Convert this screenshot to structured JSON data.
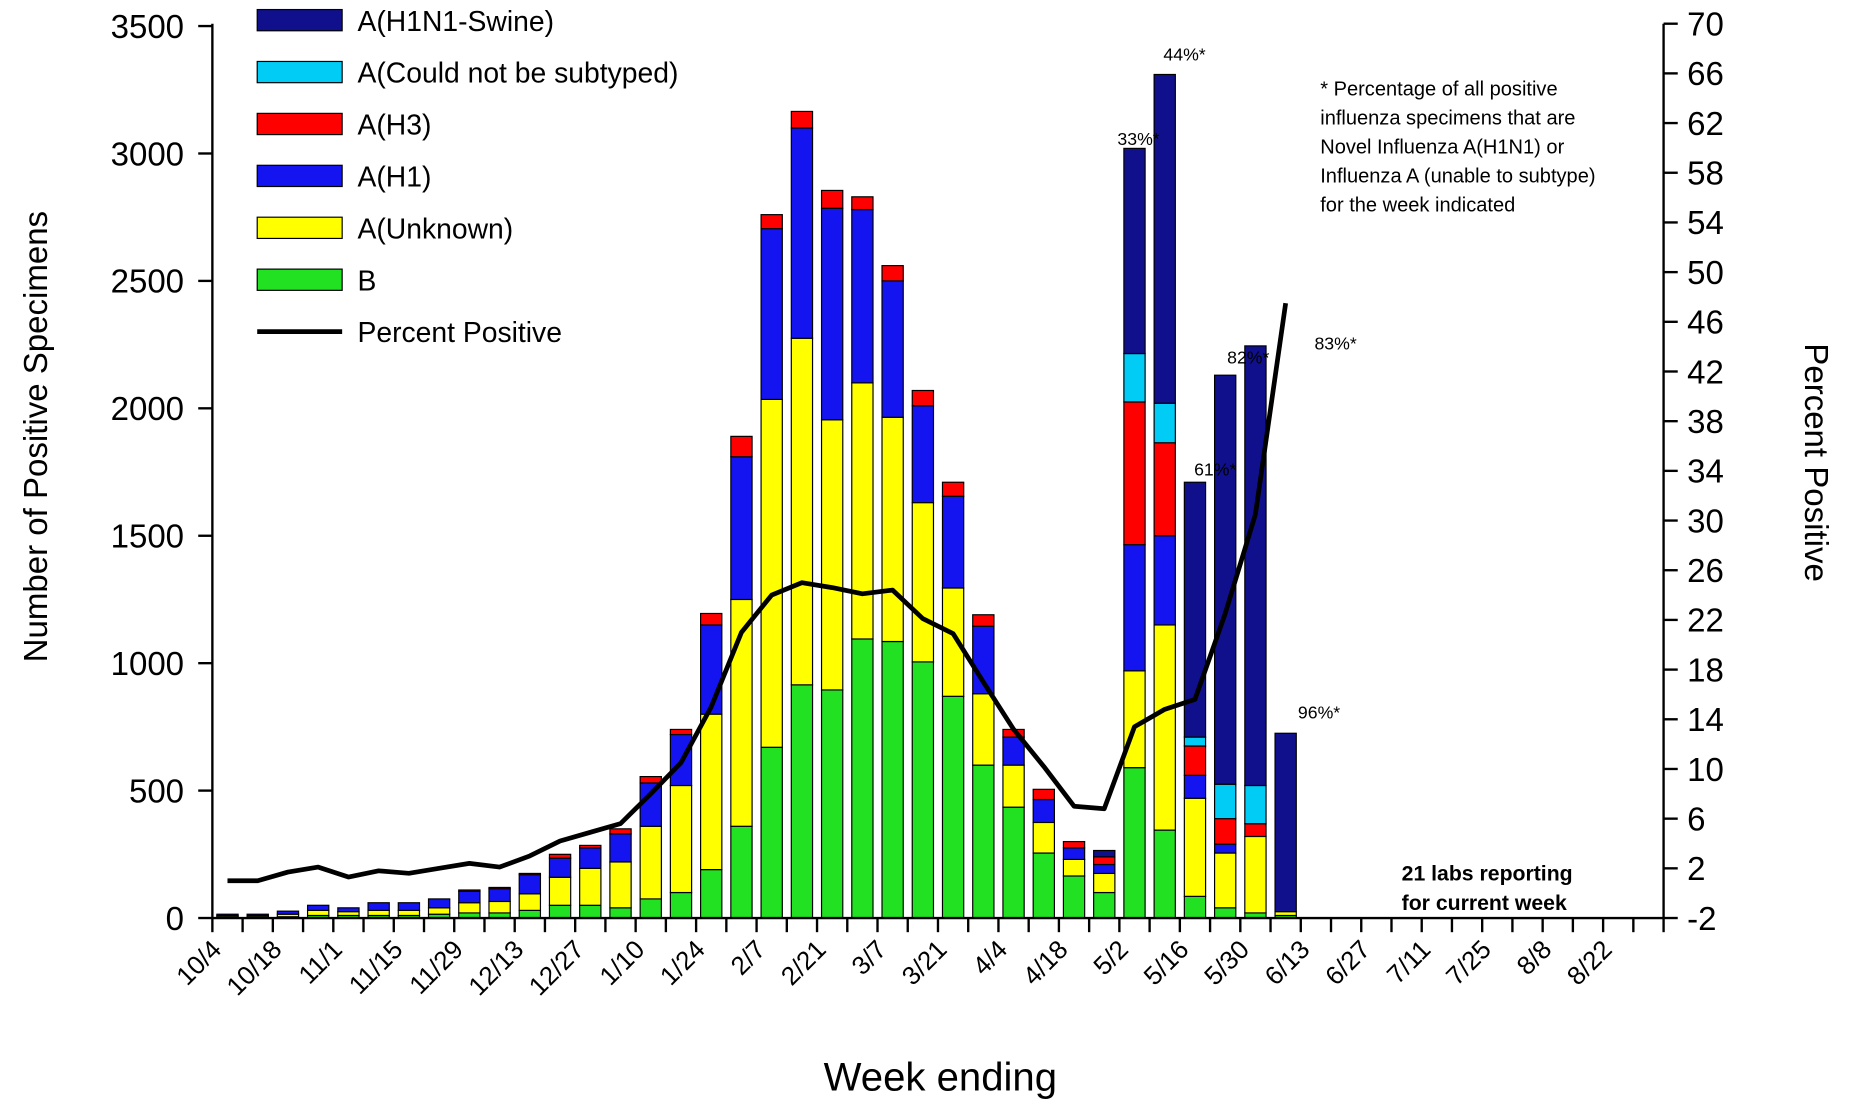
{
  "chart_data": {
    "type": "bar",
    "stacked": true,
    "xlabel": "Week ending",
    "ylabel": "Number of Positive Specimens",
    "y2label": "Percent Positive",
    "categories": [
      "10/4",
      null,
      "10/18",
      null,
      "11/1",
      null,
      "11/15",
      null,
      "11/29",
      null,
      "12/13",
      null,
      "12/27",
      null,
      "1/10",
      null,
      "1/24",
      null,
      "2/7",
      null,
      "2/21",
      null,
      "3/7",
      null,
      "3/21",
      null,
      "4/4",
      null,
      "4/18",
      null,
      "5/2",
      null,
      "5/16",
      null,
      "5/30",
      null,
      "6/13",
      null,
      "6/27",
      null,
      "7/11",
      null,
      "7/25",
      null,
      "8/8",
      null,
      "8/22",
      null
    ],
    "ylim": [
      0,
      3500
    ],
    "yticks": [
      0,
      500,
      1000,
      1500,
      2000,
      2500,
      3000,
      3500
    ],
    "y2lim": [
      -2,
      70
    ],
    "y2ticks": [
      -2,
      2,
      6,
      10,
      14,
      18,
      22,
      26,
      30,
      34,
      38,
      42,
      46,
      50,
      54,
      58,
      62,
      66,
      70
    ],
    "series": [
      {
        "name": "B",
        "color": "#22e022",
        "values": [
          5,
          5,
          5,
          10,
          10,
          10,
          10,
          15,
          20,
          20,
          30,
          50,
          50,
          40,
          75,
          100,
          190,
          360,
          670,
          915,
          895,
          1095,
          1085,
          1005,
          870,
          600,
          435,
          255,
          165,
          100,
          590,
          345,
          85,
          40,
          20,
          10,
          null,
          null,
          null,
          null,
          null,
          null,
          null,
          null,
          null,
          null,
          null,
          null
        ]
      },
      {
        "name": "A(Unknown)",
        "color": "#ffff00",
        "values": [
          5,
          5,
          10,
          20,
          15,
          20,
          20,
          25,
          40,
          45,
          65,
          110,
          145,
          180,
          285,
          420,
          610,
          890,
          1365,
          1360,
          1060,
          1005,
          880,
          625,
          425,
          280,
          165,
          120,
          65,
          75,
          380,
          805,
          385,
          215,
          300,
          15,
          null,
          null,
          null,
          null,
          null,
          null,
          null,
          null,
          null,
          null,
          null,
          null
        ]
      },
      {
        "name": "A(H1)",
        "color": "#1414f0",
        "values": [
          5,
          5,
          12,
          20,
          15,
          30,
          30,
          35,
          45,
          50,
          75,
          75,
          80,
          110,
          170,
          200,
          350,
          560,
          670,
          825,
          830,
          680,
          535,
          380,
          360,
          265,
          110,
          90,
          45,
          35,
          495,
          350,
          90,
          35,
          0,
          0,
          null,
          null,
          null,
          null,
          null,
          null,
          null,
          null,
          null,
          null,
          null,
          null
        ]
      },
      {
        "name": "A(H3)",
        "color": "#ff0000",
        "values": [
          0,
          0,
          0,
          0,
          0,
          0,
          0,
          0,
          5,
          5,
          5,
          15,
          10,
          20,
          25,
          20,
          45,
          80,
          55,
          65,
          70,
          50,
          60,
          60,
          55,
          45,
          30,
          40,
          25,
          30,
          560,
          365,
          115,
          100,
          50,
          0,
          null,
          null,
          null,
          null,
          null,
          null,
          null,
          null,
          null,
          null,
          null,
          null
        ]
      },
      {
        "name": "A(Could not be subtyped)",
        "color": "#00ccf5",
        "values": [
          0,
          0,
          0,
          0,
          0,
          0,
          0,
          0,
          0,
          0,
          0,
          0,
          0,
          0,
          0,
          0,
          0,
          0,
          0,
          0,
          0,
          0,
          0,
          0,
          0,
          0,
          0,
          0,
          0,
          0,
          190,
          155,
          35,
          135,
          150,
          0,
          null,
          null,
          null,
          null,
          null,
          null,
          null,
          null,
          null,
          null,
          null,
          null
        ]
      },
      {
        "name": "A(H1N1-Swine)",
        "color": "#10108c",
        "values": [
          0,
          0,
          0,
          0,
          0,
          0,
          0,
          0,
          0,
          0,
          0,
          0,
          0,
          0,
          0,
          0,
          0,
          0,
          0,
          0,
          0,
          0,
          0,
          0,
          0,
          0,
          0,
          0,
          0,
          25,
          805,
          1290,
          1000,
          1605,
          1725,
          700,
          null,
          null,
          null,
          null,
          null,
          null,
          null,
          null,
          null,
          null,
          null,
          null
        ]
      },
      {
        "name": "Percent Positive",
        "type": "line",
        "axis": "y2",
        "color": "#000000",
        "values": [
          1.0,
          1.0,
          1.7,
          2.1,
          1.3,
          1.8,
          1.6,
          2.0,
          2.4,
          2.1,
          3.0,
          4.2,
          4.9,
          5.6,
          8.0,
          10.5,
          15.0,
          21.0,
          24.0,
          25.0,
          24.6,
          24.1,
          24.4,
          22.1,
          20.9,
          17.0,
          13.2,
          10.2,
          7.0,
          6.8,
          13.4,
          14.8,
          15.6,
          22.5,
          30.5,
          47.5,
          null,
          null,
          null,
          null,
          null,
          null,
          null,
          null,
          null,
          null,
          null,
          null
        ]
      }
    ],
    "annotations": [
      "33%*",
      "44%*",
      "61%*",
      "82%*",
      "83%*",
      "96%*"
    ],
    "note": [
      "* Percentage of all positive",
      "influenza specimens that are",
      "Novel Influenza A(H1N1) or",
      "Influenza A (unable to subtype)",
      "for the week indicated"
    ],
    "labs_note": [
      "21 labs reporting",
      "for current week"
    ]
  }
}
